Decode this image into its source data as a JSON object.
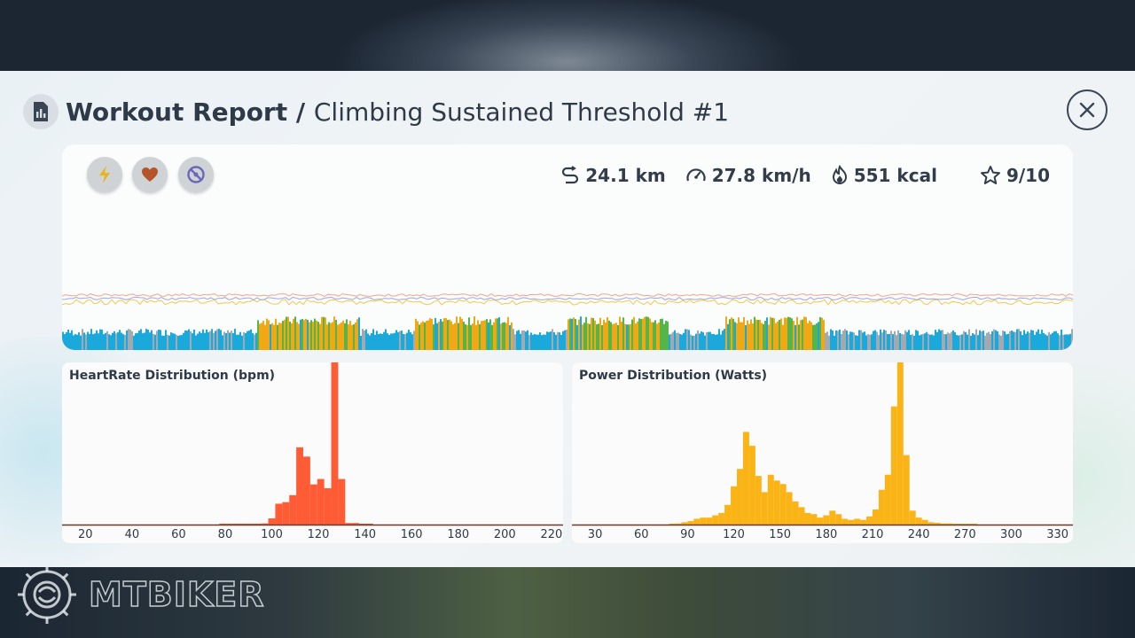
{
  "header": {
    "title": "Workout Report",
    "separator": " / ",
    "subtitle": "Climbing Sustained Threshold #1",
    "icon": "report-chart-icon",
    "close_icon": "close-icon"
  },
  "toggles": [
    {
      "name": "power",
      "icon": "lightning-icon",
      "color": "#e7b320"
    },
    {
      "name": "heartrate",
      "icon": "heart-icon",
      "color": "#b5532a"
    },
    {
      "name": "cadence",
      "icon": "cadence-icon",
      "color": "#6a68b6"
    }
  ],
  "stats": {
    "distance": "24.1 km",
    "speed": "27.8 km/h",
    "calories": "551 kcal",
    "rating": "9/10"
  },
  "colors": {
    "recovery": "#1ba9dc",
    "threshold": "#f0a815",
    "tempo": "#55b548",
    "gray": "#a2a9b0",
    "heartrate": "#ff5c35",
    "power": "#fbb416"
  },
  "chart_data": [
    {
      "type": "bar",
      "title": "HeartRate Distribution (bpm)",
      "xticks": [
        "20",
        "40",
        "60",
        "80",
        "100",
        "120",
        "140",
        "160",
        "180",
        "200",
        "220"
      ],
      "xlim": [
        10,
        225
      ],
      "bin_width": 3,
      "x": [
        79,
        82,
        85,
        88,
        91,
        94,
        97,
        100,
        103,
        106,
        109,
        112,
        115,
        118,
        121,
        124,
        127,
        130,
        133,
        136,
        139,
        142
      ],
      "values": [
        0.3,
        0.6,
        0.8,
        0.8,
        1,
        1.2,
        1.5,
        8,
        27,
        29,
        38,
        100,
        88,
        52,
        59,
        47,
        210,
        59,
        2,
        2,
        0.8,
        0.3
      ],
      "color": "#ff5c35"
    },
    {
      "type": "bar",
      "title": "Power Distribution (Watts)",
      "xticks": [
        "30",
        "60",
        "90",
        "120",
        "150",
        "180",
        "210",
        "240",
        "270",
        "300",
        "330"
      ],
      "xlim": [
        15,
        340
      ],
      "bin_width": 4,
      "x": [
        80,
        84,
        88,
        92,
        96,
        100,
        104,
        108,
        112,
        116,
        120,
        124,
        128,
        132,
        136,
        140,
        144,
        148,
        152,
        156,
        160,
        164,
        168,
        172,
        176,
        180,
        184,
        188,
        192,
        196,
        200,
        204,
        208,
        212,
        216,
        220,
        224,
        228,
        232,
        236,
        240,
        244,
        248,
        252,
        256,
        260,
        264,
        268,
        272,
        276
      ],
      "values": [
        0.5,
        1,
        2,
        3,
        5,
        6,
        6,
        8,
        10,
        17,
        33,
        48,
        80,
        68,
        42,
        28,
        43,
        38,
        35,
        28,
        20,
        15,
        10,
        9,
        6,
        8,
        12,
        9,
        5,
        4,
        5,
        4,
        7,
        13,
        30,
        43,
        102,
        140,
        60,
        12,
        6,
        4,
        2,
        1.5,
        1,
        1,
        0.7,
        0.5,
        0.4,
        0.3
      ],
      "color": "#fbb416"
    }
  ]
}
